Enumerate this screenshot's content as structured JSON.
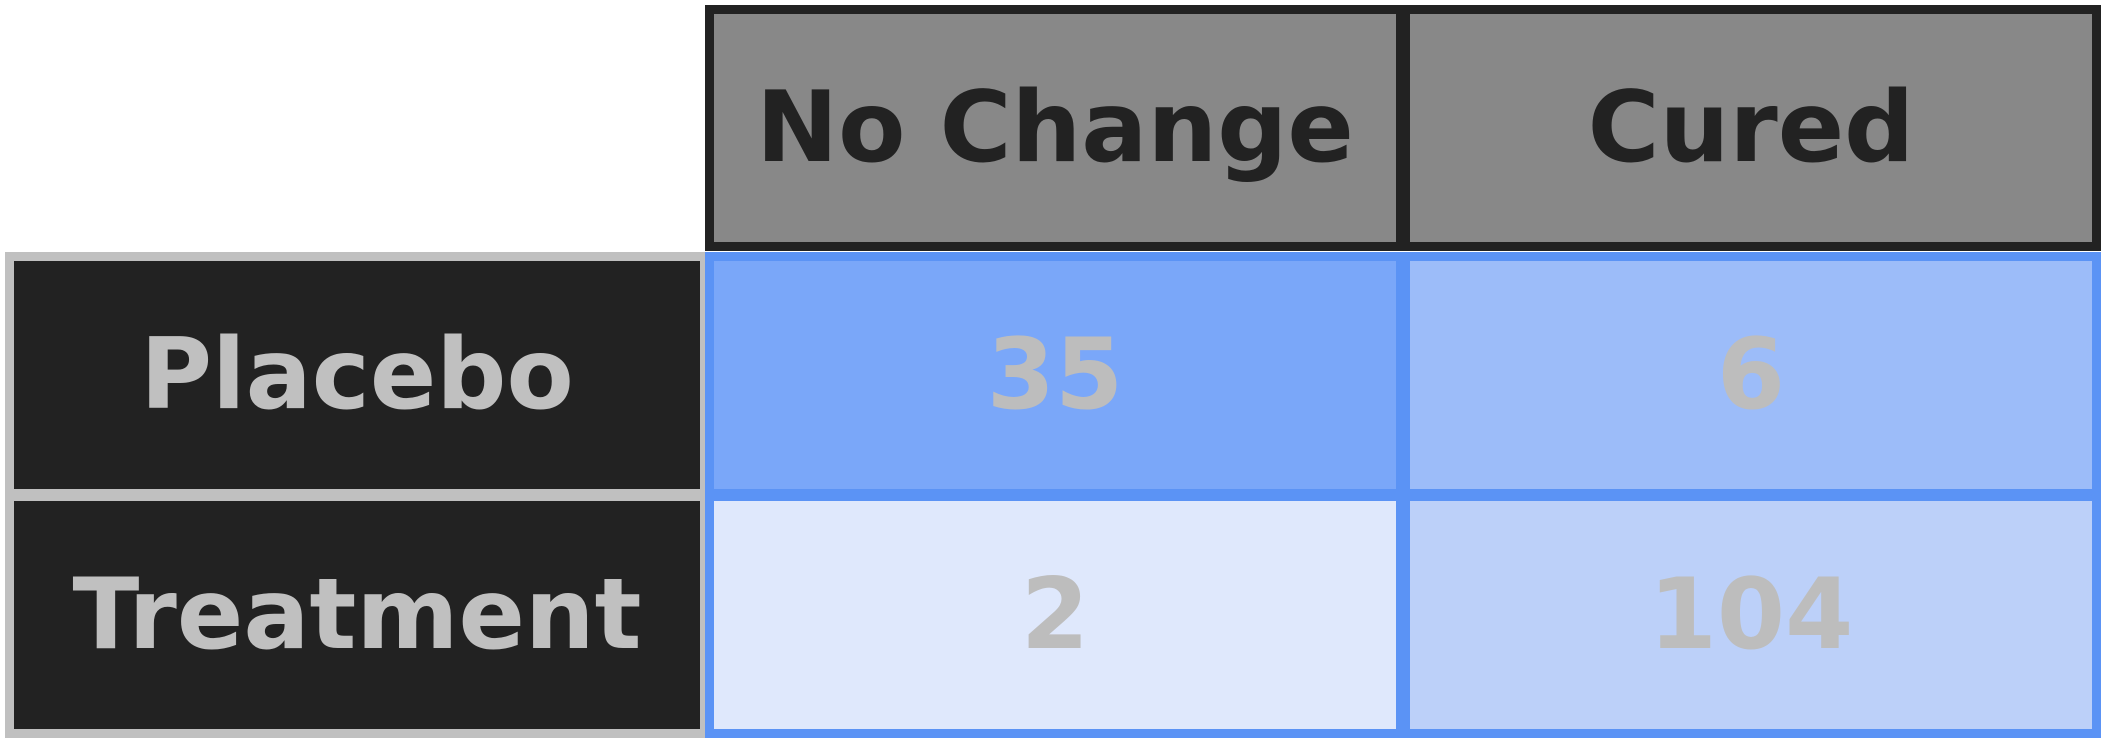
{
  "chart_data": {
    "type": "table",
    "columns": [
      "No Change",
      "Cured"
    ],
    "rows": [
      {
        "label": "Placebo",
        "values": [
          35,
          6
        ],
        "colors": [
          "#7aa7f9",
          "#9cbcf9"
        ]
      },
      {
        "label": "Treatment",
        "values": [
          2,
          104
        ],
        "colors": [
          "#dfe8fc",
          "#bcd0f9"
        ]
      }
    ]
  },
  "colors": {
    "col_header_bg": "#888888",
    "col_header_border": "#222222",
    "row_header_bg": "#222222",
    "row_header_border": "#c0c0c0",
    "cell_border": "#5b93f5",
    "cell_text": "#bdbdbd"
  }
}
